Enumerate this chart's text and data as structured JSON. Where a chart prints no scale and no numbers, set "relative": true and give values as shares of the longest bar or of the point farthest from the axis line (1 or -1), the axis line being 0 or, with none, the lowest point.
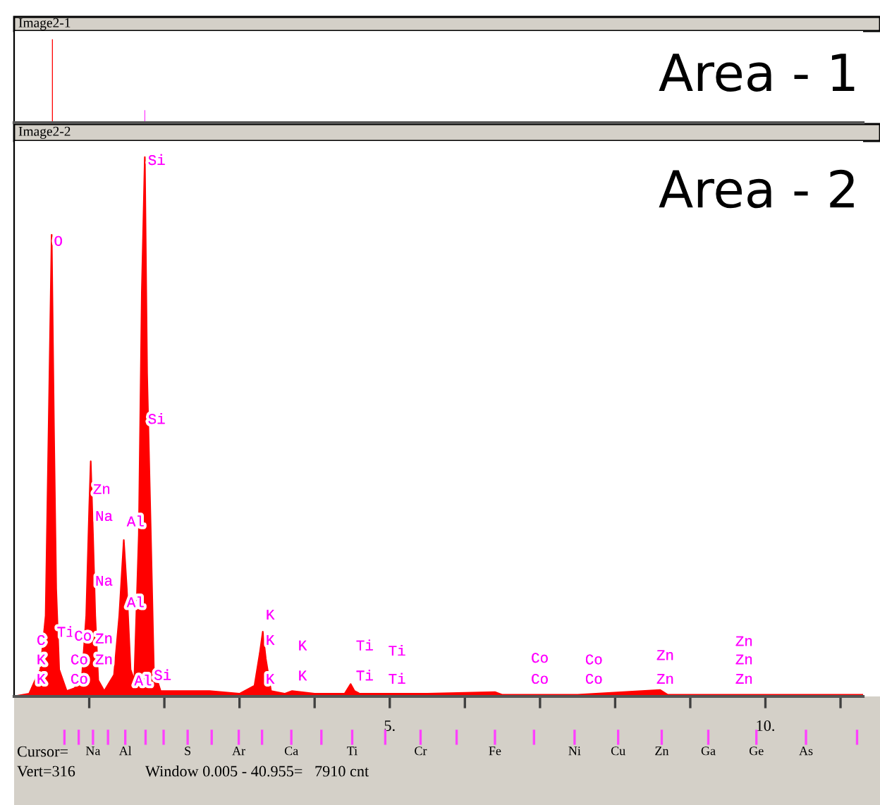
{
  "chart_data": [
    {
      "type": "bar",
      "title": "Image2-1",
      "annotations": [
        "Area - 1"
      ],
      "relative": true,
      "tick_labels": false,
      "legend": false,
      "x": [
        0.51,
        1.74
      ],
      "values": [
        1,
        0.15
      ],
      "colors": [
        "#ff0000",
        "#ff40ff"
      ],
      "xlim": [
        0,
        11.3
      ]
    },
    {
      "type": "area",
      "title": "Image2-2",
      "relative": true,
      "tick_labels": "x",
      "legend": false,
      "xlim": [
        0,
        11.3
      ],
      "x": [
        0.0,
        0.2,
        0.28,
        0.35,
        0.42,
        0.46,
        0.5,
        0.53,
        0.56,
        0.6,
        0.7,
        0.8,
        0.9,
        0.96,
        1.0,
        1.02,
        1.05,
        1.08,
        1.12,
        1.2,
        1.33,
        1.4,
        1.46,
        1.5,
        1.55,
        1.6,
        1.66,
        1.7,
        1.74,
        1.77,
        1.82,
        1.86,
        1.95,
        2.3,
        2.6,
        3.0,
        3.2,
        3.27,
        3.31,
        3.35,
        3.42,
        3.6,
        3.7,
        4.0,
        4.4,
        4.48,
        4.53,
        4.6,
        5.5,
        6.4,
        6.5,
        7.5,
        8.6,
        8.7,
        11.3
      ],
      "series": [
        {
          "color": "#ff0000",
          "values": [
            0,
            0.005,
            0.03,
            0.05,
            0.15,
            0.5,
            0.856,
            0.5,
            0.2,
            0.05,
            0.01,
            0.015,
            0.03,
            0.15,
            0.35,
            0.436,
            0.3,
            0.15,
            0.03,
            0.01,
            0.04,
            0.15,
            0.29,
            0.2,
            0.05,
            0.03,
            0.3,
            0.75,
            1.0,
            0.6,
            0.3,
            0.05,
            0.01,
            0.01,
            0.01,
            0.005,
            0.02,
            0.08,
            0.12,
            0.07,
            0.01,
            0.005,
            0.01,
            0.005,
            0.005,
            0.023,
            0.01,
            0.005,
            0.005,
            0.008,
            0.003,
            0.003,
            0.012,
            0.003,
            0.003
          ]
        }
      ],
      "xticks": [
        {
          "value": 1,
          "label": null
        },
        {
          "value": 2,
          "label": null
        },
        {
          "value": 3,
          "label": null
        },
        {
          "value": 4,
          "label": null
        },
        {
          "value": 5,
          "label": "5."
        },
        {
          "value": 6,
          "label": null
        },
        {
          "value": 7,
          "label": null
        },
        {
          "value": 8,
          "label": null
        },
        {
          "value": 9,
          "label": null
        },
        {
          "value": 10,
          "label": "10."
        },
        {
          "value": 11,
          "label": null
        }
      ],
      "annotations": [
        "Area - 2",
        "Cursor=",
        "Vert=316",
        "Window 0.005 - 40.955=   7910 cnt",
        "O",
        "Si",
        "Si",
        "Zn",
        "Na",
        "Al",
        "Na",
        "Al",
        "C",
        "Ti",
        "K",
        "K",
        "Co",
        "Zn",
        "Co",
        "Zn",
        "Co",
        "Al",
        "Si",
        "K",
        "K",
        "K",
        "K",
        "K",
        "Ti",
        "Ti",
        "Ti",
        "Ti",
        "Co",
        "Co",
        "Co",
        "Co",
        "Zn",
        "Zn",
        "Zn",
        "Zn",
        "Zn",
        "Na",
        "Al",
        "S",
        "Ar",
        "Ca",
        "Ti",
        "Cr",
        "Fe",
        "Ni",
        "Cu",
        "Zn",
        "Ga",
        "Ge",
        "As"
      ]
    }
  ]
}
